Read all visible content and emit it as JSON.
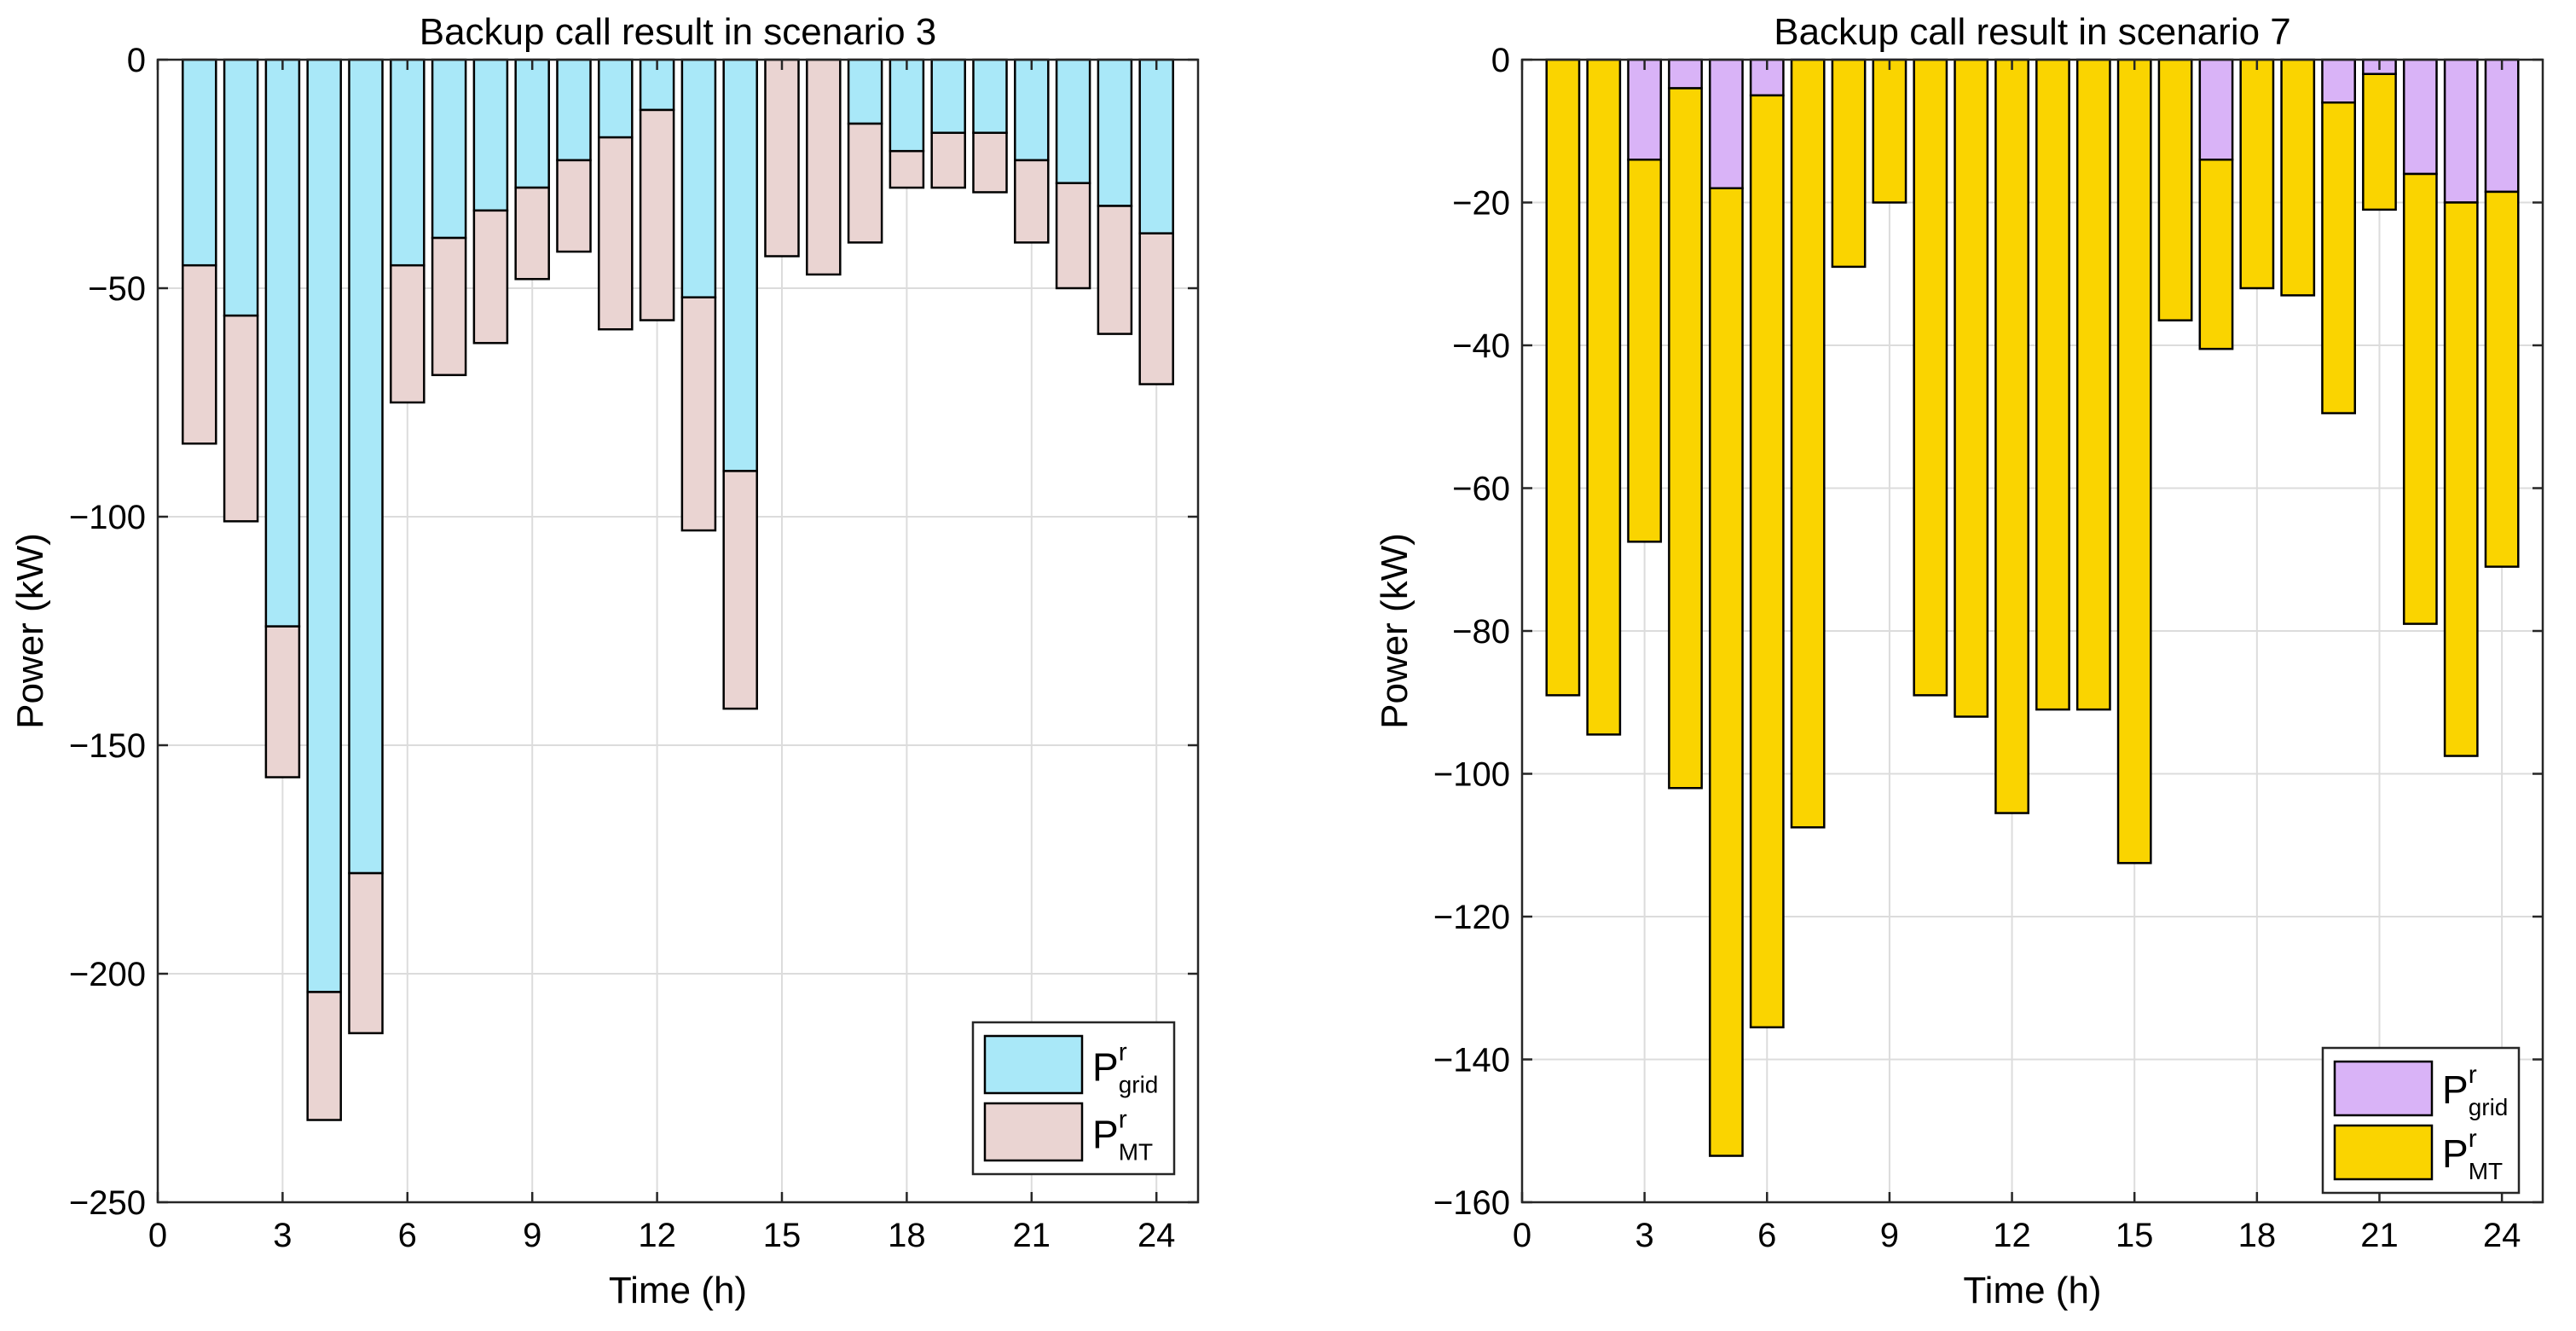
{
  "chart_data": [
    {
      "type": "bar",
      "stacked": true,
      "title": "Backup call result in scenario 3",
      "xlabel": "Time (h)",
      "ylabel": "Power (kW)",
      "xlim": [
        0,
        25
      ],
      "ylim": [
        -250,
        0
      ],
      "xticks": [
        0,
        3,
        6,
        9,
        12,
        15,
        18,
        21,
        24
      ],
      "yticks": [
        0,
        -50,
        -100,
        -150,
        -200,
        -250
      ],
      "ytick_labels": [
        "0",
        "−50",
        "−100",
        "−150",
        "−200",
        "−250"
      ],
      "grid": true,
      "legend_position": "bottom-right",
      "x": [
        1,
        2,
        3,
        4,
        5,
        6,
        7,
        8,
        9,
        10,
        11,
        12,
        13,
        14,
        15,
        16,
        17,
        18,
        19,
        20,
        21,
        22,
        23,
        24
      ],
      "series": [
        {
          "name": "P_grid^r",
          "legend": {
            "base": "P",
            "sup": "r",
            "sub": "grid"
          },
          "color": "#a9e8f8",
          "values": [
            -45,
            -56,
            -124,
            -204,
            -178,
            -45,
            -39,
            -33,
            -28,
            -22,
            -17,
            -11,
            -52,
            -90,
            0,
            0,
            -14,
            -20,
            -16,
            -16,
            -22,
            -27,
            -32,
            -38
          ]
        },
        {
          "name": "P_MT^r",
          "legend": {
            "base": "P",
            "sup": "r",
            "sub": "MT"
          },
          "color": "#ead4d2",
          "values": [
            -39,
            -45,
            -33,
            -28,
            -35,
            -30,
            -30,
            -29,
            -20,
            -20,
            -42,
            -46,
            -51,
            -52,
            -43,
            -47,
            -26,
            -8,
            -12,
            -13,
            -18,
            -23,
            -28,
            -33
          ]
        }
      ]
    },
    {
      "type": "bar",
      "stacked": true,
      "title": "Backup call result in scenario 7",
      "xlabel": "Time (h)",
      "ylabel": "Power (kW)",
      "xlim": [
        0,
        25
      ],
      "ylim": [
        -160,
        0
      ],
      "xticks": [
        0,
        3,
        6,
        9,
        12,
        15,
        18,
        21,
        24
      ],
      "yticks": [
        0,
        -20,
        -40,
        -60,
        -80,
        -100,
        -120,
        -140,
        -160
      ],
      "ytick_labels": [
        "0",
        "−20",
        "−40",
        "−60",
        "−80",
        "−100",
        "−120",
        "−140",
        "−160"
      ],
      "grid": true,
      "legend_position": "bottom-right",
      "x": [
        1,
        2,
        3,
        4,
        5,
        6,
        7,
        8,
        9,
        10,
        11,
        12,
        13,
        14,
        15,
        16,
        17,
        18,
        19,
        20,
        21,
        22,
        23,
        24
      ],
      "series": [
        {
          "name": "P_grid^r",
          "legend": {
            "base": "P",
            "sup": "r",
            "sub": "grid"
          },
          "color": "#d9b3f7",
          "values": [
            0,
            0,
            -14,
            -4,
            -18,
            -5,
            0,
            0,
            0,
            0,
            0,
            0,
            0,
            0,
            0,
            0,
            -14,
            0,
            0,
            -6,
            -2,
            -16,
            -20,
            -18.5
          ]
        },
        {
          "name": "P_MT^r",
          "legend": {
            "base": "P",
            "sup": "r",
            "sub": "MT"
          },
          "color": "#fad400",
          "values": [
            -89,
            -94.5,
            -53.5,
            -98,
            -135.5,
            -130.5,
            -107.5,
            -29,
            -20,
            -89,
            -92,
            -105.5,
            -91,
            -91,
            -112.5,
            -36.5,
            -26.5,
            -32,
            -33,
            -43.5,
            -19,
            -63,
            -77.5,
            -52.5
          ]
        }
      ]
    }
  ]
}
